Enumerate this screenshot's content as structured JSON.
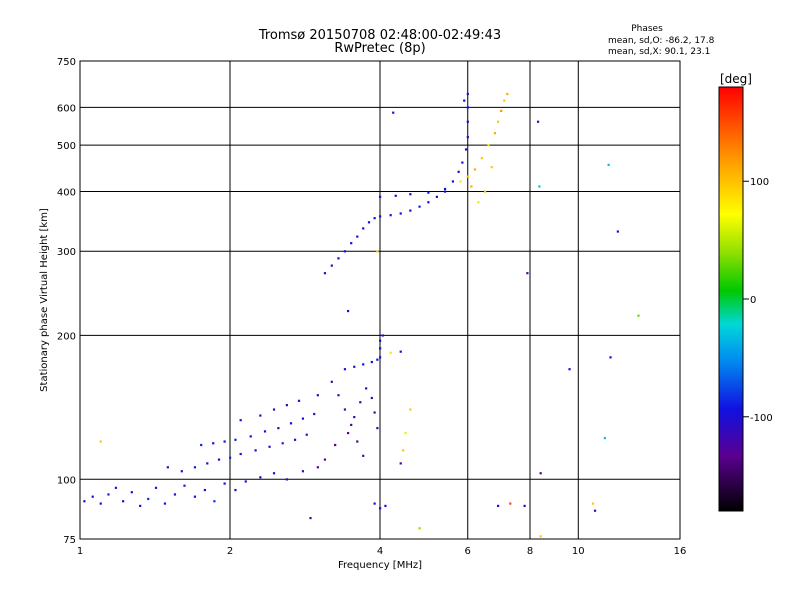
{
  "header": {
    "title": "Tromsø 20150708 02:48:00-02:49:43",
    "subtitle": "RwPretec (8p)"
  },
  "phase_stats": {
    "heading": "Phases",
    "line_o": "mean, sd,O: -86.2, 17.8",
    "line_x": "mean, sd,X:  90.1, 23.1"
  },
  "chart_data": {
    "type": "scatter",
    "title": "Tromsø 20150708 02:48:00-02:49:43",
    "subtitle": "RwPretec (8p)",
    "xlabel": "Frequency [MHz]",
    "ylabel": "Stationary phase Virtual Height [km]",
    "x_scale": "log",
    "y_scale": "log",
    "xlim": [
      1,
      16
    ],
    "ylim": [
      75,
      750
    ],
    "x_ticks": [
      1,
      2,
      4,
      6,
      8,
      10,
      16
    ],
    "x_tick_labels": [
      "1",
      "2",
      "4",
      "6",
      "8",
      "10",
      "16"
    ],
    "y_ticks": [
      75,
      100,
      200,
      300,
      400,
      500,
      600,
      750
    ],
    "y_tick_labels": [
      "75",
      "100",
      "200",
      "300",
      "400",
      "500",
      "600",
      "750"
    ],
    "grid": true,
    "colorbar": {
      "label": "[deg]",
      "range": [
        -180,
        180
      ],
      "ticks": [
        100,
        0,
        -100
      ],
      "tick_labels": [
        "100",
        "0",
        "-100"
      ]
    },
    "points_generation_note_removed": true,
    "points": [
      {
        "f": 1.02,
        "h": 90,
        "phase": -100
      },
      {
        "f": 1.06,
        "h": 92,
        "phase": -95
      },
      {
        "f": 1.1,
        "h": 89,
        "phase": -105
      },
      {
        "f": 1.14,
        "h": 93,
        "phase": -90
      },
      {
        "f": 1.18,
        "h": 96,
        "phase": -100
      },
      {
        "f": 1.22,
        "h": 90,
        "phase": -110
      },
      {
        "f": 1.27,
        "h": 94,
        "phase": -95
      },
      {
        "f": 1.32,
        "h": 88,
        "phase": -100
      },
      {
        "f": 1.37,
        "h": 91,
        "phase": -85
      },
      {
        "f": 1.42,
        "h": 96,
        "phase": -100
      },
      {
        "f": 1.48,
        "h": 89,
        "phase": -95
      },
      {
        "f": 1.55,
        "h": 93,
        "phase": -105
      },
      {
        "f": 1.62,
        "h": 97,
        "phase": -90
      },
      {
        "f": 1.7,
        "h": 92,
        "phase": -100
      },
      {
        "f": 1.78,
        "h": 95,
        "phase": -95
      },
      {
        "f": 1.86,
        "h": 90,
        "phase": -85
      },
      {
        "f": 1.95,
        "h": 98,
        "phase": -100
      },
      {
        "f": 2.05,
        "h": 95,
        "phase": -95
      },
      {
        "f": 2.15,
        "h": 99,
        "phase": -110
      },
      {
        "f": 2.3,
        "h": 101,
        "phase": -100
      },
      {
        "f": 2.45,
        "h": 103,
        "phase": -95
      },
      {
        "f": 2.6,
        "h": 100,
        "phase": -120
      },
      {
        "f": 2.8,
        "h": 104,
        "phase": -115
      },
      {
        "f": 3.0,
        "h": 106,
        "phase": -125
      },
      {
        "f": 1.6,
        "h": 104,
        "phase": -95
      },
      {
        "f": 1.7,
        "h": 106,
        "phase": -90
      },
      {
        "f": 1.8,
        "h": 108,
        "phase": -100
      },
      {
        "f": 1.9,
        "h": 110,
        "phase": -95
      },
      {
        "f": 2.0,
        "h": 111,
        "phase": -85
      },
      {
        "f": 2.1,
        "h": 113,
        "phase": -100
      },
      {
        "f": 2.25,
        "h": 115,
        "phase": -95
      },
      {
        "f": 2.4,
        "h": 117,
        "phase": -105
      },
      {
        "f": 2.55,
        "h": 119,
        "phase": -90
      },
      {
        "f": 2.7,
        "h": 121,
        "phase": -100
      },
      {
        "f": 2.85,
        "h": 124,
        "phase": -110
      },
      {
        "f": 1.75,
        "h": 118,
        "phase": -90
      },
      {
        "f": 1.85,
        "h": 119,
        "phase": -95
      },
      {
        "f": 1.95,
        "h": 120,
        "phase": -100
      },
      {
        "f": 2.05,
        "h": 121,
        "phase": -90
      },
      {
        "f": 2.2,
        "h": 123,
        "phase": -100
      },
      {
        "f": 2.35,
        "h": 126,
        "phase": -95
      },
      {
        "f": 2.5,
        "h": 128,
        "phase": -105
      },
      {
        "f": 2.65,
        "h": 131,
        "phase": -100
      },
      {
        "f": 2.8,
        "h": 134,
        "phase": -95
      },
      {
        "f": 2.95,
        "h": 137,
        "phase": -110
      },
      {
        "f": 2.1,
        "h": 133,
        "phase": -95
      },
      {
        "f": 2.3,
        "h": 136,
        "phase": -100
      },
      {
        "f": 2.45,
        "h": 140,
        "phase": -105
      },
      {
        "f": 2.6,
        "h": 143,
        "phase": -110
      },
      {
        "f": 2.75,
        "h": 146,
        "phase": -100
      },
      {
        "f": 3.0,
        "h": 150,
        "phase": -120
      },
      {
        "f": 3.2,
        "h": 160,
        "phase": -115
      },
      {
        "f": 3.3,
        "h": 150,
        "phase": -120
      },
      {
        "f": 3.4,
        "h": 140,
        "phase": -125
      },
      {
        "f": 3.5,
        "h": 130,
        "phase": -130
      },
      {
        "f": 3.6,
        "h": 120,
        "phase": -140
      },
      {
        "f": 3.7,
        "h": 112,
        "phase": -125
      },
      {
        "f": 3.1,
        "h": 110,
        "phase": -135
      },
      {
        "f": 3.25,
        "h": 118,
        "phase": -140
      },
      {
        "f": 3.45,
        "h": 125,
        "phase": -130
      },
      {
        "f": 3.55,
        "h": 135,
        "phase": -120
      },
      {
        "f": 3.65,
        "h": 145,
        "phase": -110
      },
      {
        "f": 3.75,
        "h": 155,
        "phase": -115
      },
      {
        "f": 3.85,
        "h": 148,
        "phase": -120
      },
      {
        "f": 3.9,
        "h": 138,
        "phase": -110
      },
      {
        "f": 3.95,
        "h": 128,
        "phase": -120
      },
      {
        "f": 3.4,
        "h": 170,
        "phase": -95
      },
      {
        "f": 3.55,
        "h": 172,
        "phase": -100
      },
      {
        "f": 3.7,
        "h": 174,
        "phase": -95
      },
      {
        "f": 3.85,
        "h": 176,
        "phase": -100
      },
      {
        "f": 3.95,
        "h": 178,
        "phase": -95
      },
      {
        "f": 4.0,
        "h": 180,
        "phase": -100
      },
      {
        "f": 4.0,
        "h": 188,
        "phase": -95
      },
      {
        "f": 4.0,
        "h": 195,
        "phase": -100
      },
      {
        "f": 4.05,
        "h": 200,
        "phase": -95
      },
      {
        "f": 4.2,
        "h": 184,
        "phase": 90
      },
      {
        "f": 4.4,
        "h": 185,
        "phase": -100
      },
      {
        "f": 4.6,
        "h": 140,
        "phase": 100
      },
      {
        "f": 4.5,
        "h": 125,
        "phase": 70
      },
      {
        "f": 4.45,
        "h": 115,
        "phase": 100
      },
      {
        "f": 4.4,
        "h": 108,
        "phase": -130
      },
      {
        "f": 3.1,
        "h": 270,
        "phase": -110
      },
      {
        "f": 3.2,
        "h": 280,
        "phase": -105
      },
      {
        "f": 3.3,
        "h": 290,
        "phase": -100
      },
      {
        "f": 3.4,
        "h": 300,
        "phase": -95
      },
      {
        "f": 3.5,
        "h": 312,
        "phase": -100
      },
      {
        "f": 3.6,
        "h": 322,
        "phase": -105
      },
      {
        "f": 3.7,
        "h": 335,
        "phase": -95
      },
      {
        "f": 3.8,
        "h": 345,
        "phase": -100
      },
      {
        "f": 3.9,
        "h": 352,
        "phase": -95
      },
      {
        "f": 4.0,
        "h": 355,
        "phase": -100
      },
      {
        "f": 4.2,
        "h": 357,
        "phase": -95
      },
      {
        "f": 4.4,
        "h": 360,
        "phase": -100
      },
      {
        "f": 4.6,
        "h": 365,
        "phase": -95
      },
      {
        "f": 4.8,
        "h": 372,
        "phase": -90
      },
      {
        "f": 5.0,
        "h": 380,
        "phase": -95
      },
      {
        "f": 5.2,
        "h": 390,
        "phase": -100
      },
      {
        "f": 5.4,
        "h": 405,
        "phase": -95
      },
      {
        "f": 5.6,
        "h": 420,
        "phase": -100
      },
      {
        "f": 5.75,
        "h": 440,
        "phase": -95
      },
      {
        "f": 5.85,
        "h": 460,
        "phase": -100
      },
      {
        "f": 5.95,
        "h": 490,
        "phase": -95
      },
      {
        "f": 6.0,
        "h": 520,
        "phase": -100
      },
      {
        "f": 6.0,
        "h": 560,
        "phase": -95
      },
      {
        "f": 6.0,
        "h": 600,
        "phase": -100
      },
      {
        "f": 6.0,
        "h": 640,
        "phase": -100
      },
      {
        "f": 5.9,
        "h": 620,
        "phase": -95
      },
      {
        "f": 4.0,
        "h": 390,
        "phase": -100
      },
      {
        "f": 4.3,
        "h": 392,
        "phase": -95
      },
      {
        "f": 4.6,
        "h": 395,
        "phase": -100
      },
      {
        "f": 5.0,
        "h": 398,
        "phase": -95
      },
      {
        "f": 5.4,
        "h": 400,
        "phase": -100
      },
      {
        "f": 5.8,
        "h": 420,
        "phase": 90
      },
      {
        "f": 6.0,
        "h": 430,
        "phase": 100
      },
      {
        "f": 6.2,
        "h": 445,
        "phase": 110
      },
      {
        "f": 6.4,
        "h": 470,
        "phase": 100
      },
      {
        "f": 6.6,
        "h": 500,
        "phase": 90
      },
      {
        "f": 6.8,
        "h": 530,
        "phase": 110
      },
      {
        "f": 6.9,
        "h": 560,
        "phase": 100
      },
      {
        "f": 7.0,
        "h": 590,
        "phase": 120
      },
      {
        "f": 7.1,
        "h": 620,
        "phase": 100
      },
      {
        "f": 7.2,
        "h": 640,
        "phase": 110
      },
      {
        "f": 6.5,
        "h": 400,
        "phase": 100
      },
      {
        "f": 6.3,
        "h": 380,
        "phase": 90
      },
      {
        "f": 6.1,
        "h": 410,
        "phase": 110
      },
      {
        "f": 6.7,
        "h": 450,
        "phase": 100
      },
      {
        "f": 4.25,
        "h": 585,
        "phase": -110
      },
      {
        "f": 8.3,
        "h": 560,
        "phase": -130
      },
      {
        "f": 8.35,
        "h": 410,
        "phase": -30
      },
      {
        "f": 7.9,
        "h": 270,
        "phase": -130
      },
      {
        "f": 3.95,
        "h": 300,
        "phase": 100
      },
      {
        "f": 11.5,
        "h": 455,
        "phase": -30
      },
      {
        "f": 12.0,
        "h": 330,
        "phase": -110
      },
      {
        "f": 13.2,
        "h": 220,
        "phase": 30
      },
      {
        "f": 11.6,
        "h": 180,
        "phase": -100
      },
      {
        "f": 9.6,
        "h": 170,
        "phase": -100
      },
      {
        "f": 11.3,
        "h": 122,
        "phase": -30
      },
      {
        "f": 8.4,
        "h": 103,
        "phase": -140
      },
      {
        "f": 6.9,
        "h": 88,
        "phase": -100
      },
      {
        "f": 7.3,
        "h": 89,
        "phase": 150
      },
      {
        "f": 7.8,
        "h": 88,
        "phase": -100
      },
      {
        "f": 10.7,
        "h": 89,
        "phase": 100
      },
      {
        "f": 10.8,
        "h": 86,
        "phase": -120
      },
      {
        "f": 8.4,
        "h": 76,
        "phase": 100
      },
      {
        "f": 4.8,
        "h": 79,
        "phase": 40
      },
      {
        "f": 4.0,
        "h": 87,
        "phase": -100
      },
      {
        "f": 3.9,
        "h": 89,
        "phase": -95
      },
      {
        "f": 4.1,
        "h": 88,
        "phase": -100
      },
      {
        "f": 2.9,
        "h": 83,
        "phase": -120
      },
      {
        "f": 1.1,
        "h": 120,
        "phase": 100
      },
      {
        "f": 1.5,
        "h": 106,
        "phase": -120
      },
      {
        "f": 3.45,
        "h": 225,
        "phase": -100
      }
    ]
  }
}
